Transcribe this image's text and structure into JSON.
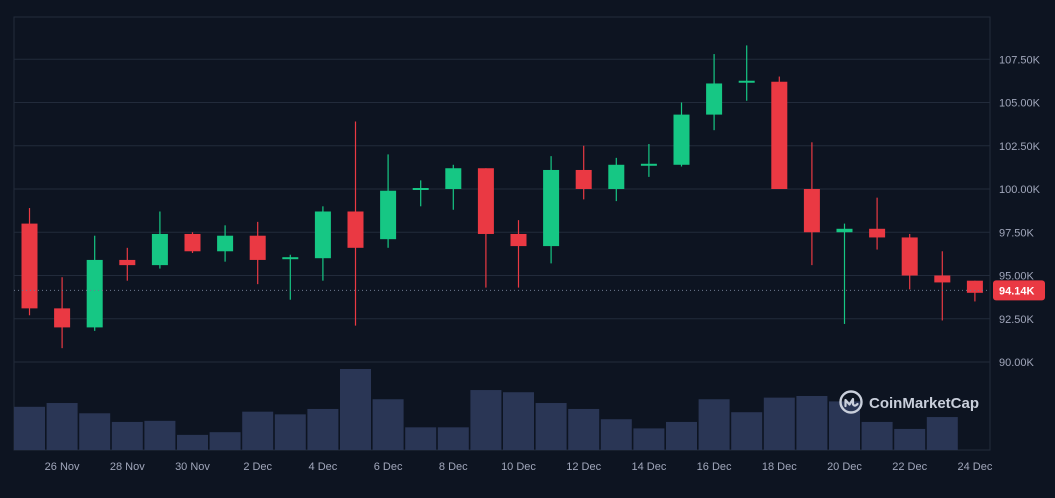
{
  "brand": {
    "name": "CoinMarketCap",
    "logo_icon": "coinmarketcap-logo-icon"
  },
  "colors": {
    "background": "#0d1421",
    "grid": "#222b3b",
    "axis_text": "#a1a7bb",
    "up": "#16c784",
    "down": "#ea3943",
    "volume": "#2a3655",
    "price_label_bg": "#ea3943"
  },
  "current_price": {
    "value": 94140,
    "label": "94.14K"
  },
  "chart_data": {
    "type": "candlestick",
    "title": "",
    "xlabel": "",
    "ylabel": "",
    "ylim": [
      87500,
      110000
    ],
    "y_ticks": [
      90000,
      92500,
      95000,
      97500,
      100000,
      102500,
      105000,
      107500
    ],
    "y_tick_labels": [
      "90.00K",
      "92.50K",
      "95.00K",
      "97.50K",
      "100.00K",
      "102.50K",
      "105.00K",
      "107.50K"
    ],
    "x_tick_labels": [
      "26 Nov",
      "28 Nov",
      "30 Nov",
      "2 Dec",
      "4 Dec",
      "6 Dec",
      "8 Dec",
      "10 Dec",
      "12 Dec",
      "14 Dec",
      "16 Dec",
      "18 Dec",
      "20 Dec",
      "22 Dec",
      "24 Dec"
    ],
    "grid": true,
    "candles": [
      {
        "date": "25 Nov",
        "open": 98000,
        "high": 98900,
        "low": 92700,
        "close": 93100,
        "volume": 0.8
      },
      {
        "date": "26 Nov",
        "open": 93100,
        "high": 94900,
        "low": 90800,
        "close": 92000,
        "volume": 0.87
      },
      {
        "date": "27 Nov",
        "open": 92000,
        "high": 97300,
        "low": 91800,
        "close": 95900,
        "volume": 0.68
      },
      {
        "date": "28 Nov",
        "open": 95900,
        "high": 96600,
        "low": 94700,
        "close": 95600,
        "volume": 0.52
      },
      {
        "date": "29 Nov",
        "open": 95600,
        "high": 98700,
        "low": 95400,
        "close": 97400,
        "volume": 0.54
      },
      {
        "date": "30 Nov",
        "open": 97400,
        "high": 97500,
        "low": 96300,
        "close": 96400,
        "volume": 0.28
      },
      {
        "date": "1 Dec",
        "open": 96400,
        "high": 97900,
        "low": 95800,
        "close": 97300,
        "volume": 0.33
      },
      {
        "date": "2 Dec",
        "open": 97300,
        "high": 98100,
        "low": 94500,
        "close": 95900,
        "volume": 0.71
      },
      {
        "date": "3 Dec",
        "open": 95900,
        "high": 96200,
        "low": 93600,
        "close": 96000,
        "volume": 0.66
      },
      {
        "date": "4 Dec",
        "open": 96000,
        "high": 99000,
        "low": 94700,
        "close": 98700,
        "volume": 0.76
      },
      {
        "date": "5 Dec",
        "open": 98700,
        "high": 103900,
        "low": 92100,
        "close": 96600,
        "volume": 1.5
      },
      {
        "date": "6 Dec",
        "open": 97100,
        "high": 102000,
        "low": 96600,
        "close": 99900,
        "volume": 0.94
      },
      {
        "date": "7 Dec",
        "open": 99900,
        "high": 100500,
        "low": 99000,
        "close": 100000,
        "volume": 0.42
      },
      {
        "date": "8 Dec",
        "open": 100000,
        "high": 101400,
        "low": 98800,
        "close": 101200,
        "volume": 0.42
      },
      {
        "date": "9 Dec",
        "open": 101200,
        "high": 101200,
        "low": 94300,
        "close": 97400,
        "volume": 1.11
      },
      {
        "date": "10 Dec",
        "open": 97400,
        "high": 98200,
        "low": 94300,
        "close": 96700,
        "volume": 1.07
      },
      {
        "date": "11 Dec",
        "open": 96700,
        "high": 101900,
        "low": 95700,
        "close": 101100,
        "volume": 0.87
      },
      {
        "date": "12 Dec",
        "open": 101100,
        "high": 102500,
        "low": 99400,
        "close": 100000,
        "volume": 0.76
      },
      {
        "date": "13 Dec",
        "open": 100000,
        "high": 101800,
        "low": 99300,
        "close": 101400,
        "volume": 0.57
      },
      {
        "date": "14 Dec",
        "open": 101400,
        "high": 102600,
        "low": 100700,
        "close": 101400,
        "volume": 0.4
      },
      {
        "date": "15 Dec",
        "open": 101400,
        "high": 105000,
        "low": 101300,
        "close": 104300,
        "volume": 0.52
      },
      {
        "date": "16 Dec",
        "open": 104300,
        "high": 107800,
        "low": 103400,
        "close": 106100,
        "volume": 0.94
      },
      {
        "date": "17 Dec",
        "open": 106100,
        "high": 108300,
        "low": 105100,
        "close": 106200,
        "volume": 0.7
      },
      {
        "date": "18 Dec",
        "open": 106200,
        "high": 106500,
        "low": 100000,
        "close": 100000,
        "volume": 0.97
      },
      {
        "date": "19 Dec",
        "open": 100000,
        "high": 102700,
        "low": 95600,
        "close": 97500,
        "volume": 1.0
      },
      {
        "date": "20 Dec",
        "open": 97500,
        "high": 98000,
        "low": 92200,
        "close": 97700,
        "volume": 0.9
      },
      {
        "date": "21 Dec",
        "open": 97700,
        "high": 99500,
        "low": 96500,
        "close": 97200,
        "volume": 0.52
      },
      {
        "date": "22 Dec",
        "open": 97200,
        "high": 97400,
        "low": 94200,
        "close": 95000,
        "volume": 0.39
      },
      {
        "date": "23 Dec",
        "open": 95000,
        "high": 96400,
        "low": 92400,
        "close": 94600,
        "volume": 0.61
      },
      {
        "date": "24 Dec",
        "open": 94700,
        "high": 94700,
        "low": 93500,
        "close": 94000,
        "volume": null
      }
    ]
  }
}
